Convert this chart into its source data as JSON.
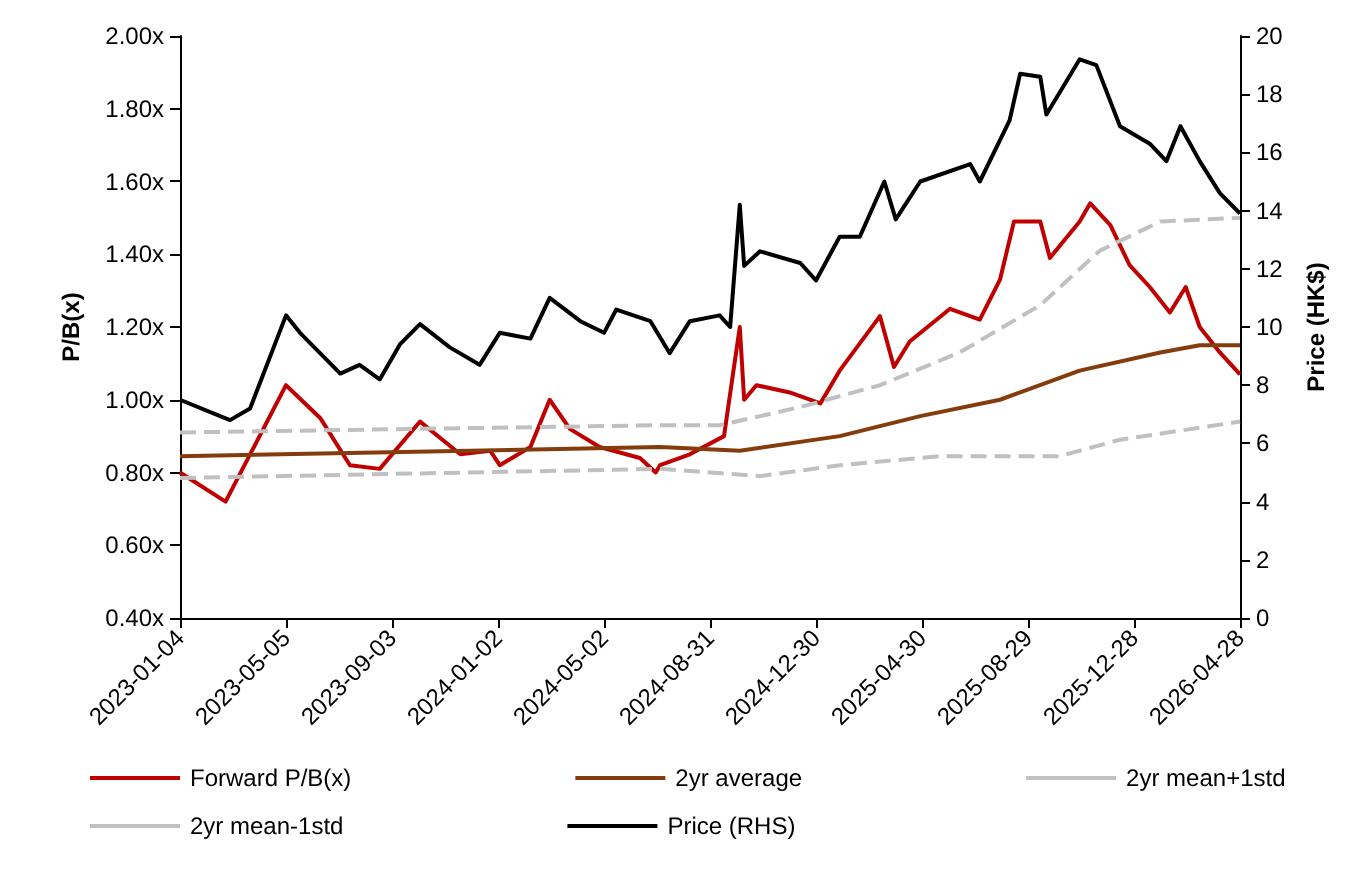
{
  "chart_data": {
    "type": "line",
    "ylabel": "P/B(x)",
    "y2label": "Price (HK$)",
    "xlim": [
      "2023-01-04",
      "2026-04-28"
    ],
    "xticks": [
      "2023-01-04",
      "2023-05-05",
      "2023-09-03",
      "2024-01-02",
      "2024-05-02",
      "2024-08-31",
      "2024-12-30",
      "2025-04-30",
      "2025-08-29",
      "2025-12-28",
      "2026-04-28"
    ],
    "ylim": [
      0.4,
      2.0
    ],
    "yticks": [
      {
        "value": 0.4,
        "label": "0.40x"
      },
      {
        "value": 0.6,
        "label": "0.60x"
      },
      {
        "value": 0.8,
        "label": "0.80x"
      },
      {
        "value": 1.0,
        "label": "1.00x"
      },
      {
        "value": 1.2,
        "label": "1.20x"
      },
      {
        "value": 1.4,
        "label": "1.40x"
      },
      {
        "value": 1.6,
        "label": "1.60x"
      },
      {
        "value": 1.8,
        "label": "1.80x"
      },
      {
        "value": 2.0,
        "label": "2.00x"
      }
    ],
    "y2lim": [
      0,
      20
    ],
    "y2ticks": [
      0,
      2,
      4,
      6,
      8,
      10,
      12,
      14,
      16,
      18,
      20
    ],
    "grid": false,
    "legend": "bottom",
    "marker": "none",
    "series": [
      {
        "name": "Forward P/B(x)",
        "color": "#c00000",
        "line_style": "solid",
        "x": [
          "2023-01-04",
          "2023-02-25",
          "2023-05-05",
          "2023-06-13",
          "2023-07-17",
          "2023-08-20",
          "2023-10-05",
          "2023-11-20",
          "2023-12-24",
          "2024-01-04",
          "2024-02-08",
          "2024-03-01",
          "2024-03-24",
          "2024-04-27",
          "2024-06-12",
          "2024-06-30",
          "2024-07-05",
          "2024-08-08",
          "2024-09-16",
          "2024-10-04",
          "2024-10-09",
          "2024-10-23",
          "2024-11-30",
          "2025-01-04",
          "2025-01-26",
          "2025-03-13",
          "2025-03-29",
          "2025-04-16",
          "2025-06-01",
          "2025-07-05",
          "2025-07-28",
          "2025-08-13",
          "2025-09-12",
          "2025-09-23",
          "2025-10-27",
          "2025-11-08",
          "2025-12-01",
          "2025-12-23",
          "2026-01-15",
          "2026-02-07",
          "2026-02-25",
          "2026-03-13",
          "2026-04-05",
          "2026-04-28"
        ],
        "values": [
          0.8,
          0.72,
          1.04,
          0.95,
          0.82,
          0.81,
          0.94,
          0.85,
          0.86,
          0.82,
          0.87,
          1.0,
          0.92,
          0.87,
          0.84,
          0.8,
          0.82,
          0.85,
          0.9,
          1.2,
          1.0,
          1.04,
          1.02,
          0.99,
          1.08,
          1.23,
          1.09,
          1.16,
          1.25,
          1.22,
          1.33,
          1.49,
          1.49,
          1.39,
          1.49,
          1.54,
          1.48,
          1.37,
          1.31,
          1.24,
          1.31,
          1.2,
          1.13,
          1.07
        ]
      },
      {
        "name": "2yr average",
        "color": "#843c0c",
        "line_style": "solid",
        "x": [
          "2023-01-04",
          "2024-07-05",
          "2024-10-04",
          "2025-01-26",
          "2025-04-28",
          "2025-07-28",
          "2025-10-27",
          "2026-01-27",
          "2026-03-13",
          "2026-04-28"
        ],
        "values": [
          0.845,
          0.87,
          0.86,
          0.9,
          0.955,
          1.0,
          1.08,
          1.13,
          1.15,
          1.15
        ]
      },
      {
        "name": "2yr mean+1std",
        "color": "#c0c0c0",
        "line_style": "dashed",
        "x": [
          "2023-01-04",
          "2024-07-05",
          "2024-09-11",
          "2024-12-12",
          "2025-03-13",
          "2025-06-12",
          "2025-09-12",
          "2025-11-19",
          "2026-01-27",
          "2026-04-28"
        ],
        "values": [
          0.91,
          0.93,
          0.93,
          0.98,
          1.04,
          1.13,
          1.26,
          1.41,
          1.49,
          1.5
        ]
      },
      {
        "name": "2yr mean-1std",
        "color": "#c0c0c0",
        "line_style": "dashed",
        "x": [
          "2023-01-04",
          "2024-07-05",
          "2024-10-27",
          "2025-01-26",
          "2025-05-21",
          "2025-10-04",
          "2025-12-12",
          "2026-04-28"
        ],
        "values": [
          0.785,
          0.81,
          0.79,
          0.82,
          0.845,
          0.845,
          0.89,
          0.94
        ]
      },
      {
        "name": "Price (RHS)",
        "color": "#000000",
        "line_style": "solid",
        "axis": "y2",
        "x": [
          "2023-01-04",
          "2023-03-02",
          "2023-03-25",
          "2023-05-05",
          "2023-05-21",
          "2023-07-06",
          "2023-07-28",
          "2023-08-20",
          "2023-09-12",
          "2023-10-05",
          "2023-11-08",
          "2023-12-12",
          "2024-01-04",
          "2024-02-08",
          "2024-03-01",
          "2024-04-05",
          "2024-05-02",
          "2024-05-16",
          "2024-06-24",
          "2024-07-16",
          "2024-08-08",
          "2024-09-11",
          "2024-09-23",
          "2024-10-04",
          "2024-10-09",
          "2024-10-27",
          "2024-12-12",
          "2024-12-30",
          "2025-01-26",
          "2025-02-18",
          "2025-03-18",
          "2025-03-31",
          "2025-04-28",
          "2025-06-24",
          "2025-07-05",
          "2025-08-08",
          "2025-08-20",
          "2025-09-12",
          "2025-09-19",
          "2025-10-27",
          "2025-11-15",
          "2025-12-12",
          "2026-01-15",
          "2026-02-03",
          "2026-02-19",
          "2026-03-13",
          "2026-04-05",
          "2026-04-28"
        ],
        "values": [
          7.5,
          6.8,
          7.2,
          10.4,
          9.8,
          8.4,
          8.7,
          8.2,
          9.4,
          10.1,
          9.3,
          8.7,
          9.8,
          9.6,
          11.0,
          10.2,
          9.8,
          10.6,
          10.2,
          9.1,
          10.2,
          10.4,
          10.0,
          14.2,
          12.1,
          12.6,
          12.2,
          11.6,
          13.1,
          13.1,
          15.0,
          13.7,
          15.0,
          15.6,
          15.0,
          17.1,
          18.7,
          18.6,
          17.3,
          19.2,
          19.0,
          16.9,
          16.3,
          15.7,
          16.9,
          15.7,
          14.6,
          13.9
        ]
      }
    ]
  }
}
